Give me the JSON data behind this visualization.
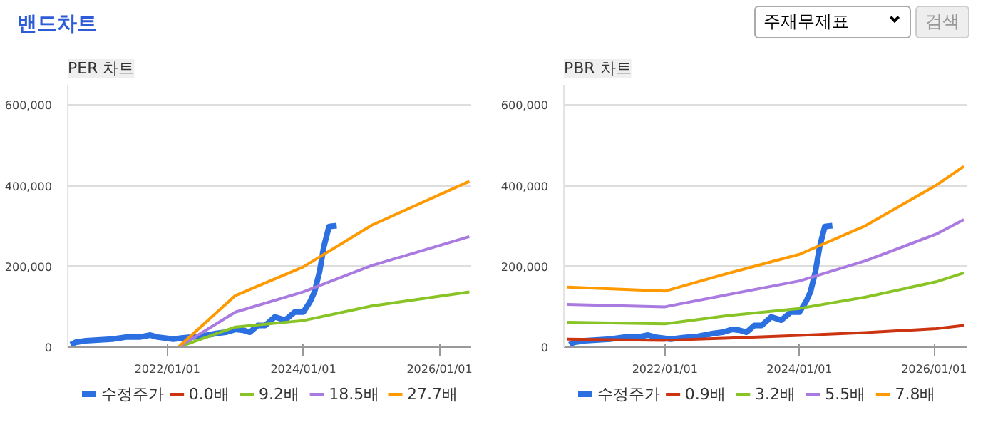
{
  "chart_data": [
    {
      "type": "line",
      "title": "PER 차트",
      "annotations": [
        "밴드차트",
        "주재무제표",
        "검색"
      ],
      "xlim": [
        "2020-07-15",
        "2026-06-20"
      ],
      "ylim": [
        0,
        650000
      ],
      "xticks": [
        {
          "value": "2022-01-01",
          "label": "2022/01/01"
        },
        {
          "value": "2024-01-01",
          "label": "2024/01/01"
        },
        {
          "value": "2026-01-01",
          "label": "2026/01/01"
        }
      ],
      "yticks": [
        0,
        {
          "value": 200000,
          "label": "200,000"
        },
        {
          "value": 400000,
          "label": "400,000"
        },
        {
          "value": 600000,
          "label": "600,000"
        }
      ],
      "grid": "y",
      "legend": "bottom",
      "series": [
        {
          "name": "수정주가",
          "color": "#2b6fe0",
          "x": [
            "2020-08-01",
            "2020-08-25",
            "2020-10-20",
            "2021-03-10",
            "2021-05-25",
            "2021-08-05",
            "2021-10-01",
            "2021-11-10",
            "2022-02-01",
            "2022-04-15",
            "2022-07-01",
            "2022-09-20",
            "2022-11-10",
            "2023-01-01",
            "2023-02-10",
            "2023-03-20",
            "2023-05-01",
            "2023-06-10",
            "2023-08-01",
            "2023-09-25",
            "2023-11-15",
            "2024-01-01",
            "2024-02-05",
            "2024-03-01",
            "2024-03-28",
            "2024-04-20",
            "2024-05-18",
            "2024-06-28"
          ],
          "values": [
            6000,
            12000,
            16000,
            20000,
            25000,
            25000,
            30000,
            25000,
            20000,
            24000,
            27000,
            34000,
            37000,
            44000,
            42000,
            37000,
            54000,
            54000,
            75000,
            67000,
            87000,
            87000,
            112000,
            137000,
            187000,
            249000,
            299000,
            301000
          ]
        },
        {
          "name": "0.0배",
          "color": "#cc3311",
          "x": [
            "2020-08-01",
            "2022-03-01",
            "2023-01-01",
            "2024-01-01",
            "2025-01-01",
            "2026-06-10"
          ],
          "values": [
            0,
            0,
            0,
            0,
            0,
            0
          ]
        },
        {
          "name": "9.2배",
          "color": "#88c425",
          "x": [
            "2020-08-01",
            "2022-03-01",
            "2023-01-01",
            "2024-01-01",
            "2025-01-01",
            "2026-06-10"
          ],
          "values": [
            0,
            0,
            50000,
            66000,
            102000,
            137000
          ]
        },
        {
          "name": "18.5배",
          "color": "#a97ae0",
          "x": [
            "2020-08-01",
            "2022-03-01",
            "2023-01-01",
            "2024-01-01",
            "2025-01-01",
            "2026-06-10"
          ],
          "values": [
            0,
            0,
            87000,
            137000,
            202000,
            274000
          ]
        },
        {
          "name": "27.7배",
          "color": "#ff9900",
          "x": [
            "2020-08-01",
            "2022-03-01",
            "2023-01-01",
            "2024-01-01",
            "2025-01-01",
            "2026-06-10"
          ],
          "values": [
            0,
            0,
            128000,
            199000,
            302000,
            411000
          ]
        }
      ]
    },
    {
      "type": "line",
      "title": "PBR 차트",
      "xlim": [
        "2020-07-01",
        "2026-07-01"
      ],
      "ylim": [
        0,
        650000
      ],
      "xticks": [
        {
          "value": "2022-01-01",
          "label": "2022/01/01"
        },
        {
          "value": "2024-01-01",
          "label": "2024/01/01"
        },
        {
          "value": "2026-01-01",
          "label": "2026/01/01"
        }
      ],
      "yticks": [
        0,
        {
          "value": 200000,
          "label": "200,000"
        },
        {
          "value": 400000,
          "label": "400,000"
        },
        {
          "value": 600000,
          "label": "600,000"
        }
      ],
      "grid": "y",
      "legend": "bottom",
      "series": [
        {
          "name": "수정주가",
          "color": "#2b6fe0",
          "x": [
            "2020-08-01",
            "2020-08-25",
            "2020-10-20",
            "2021-03-10",
            "2021-05-25",
            "2021-08-05",
            "2021-10-01",
            "2021-11-10",
            "2022-02-01",
            "2022-04-15",
            "2022-07-01",
            "2022-09-20",
            "2022-11-10",
            "2023-01-01",
            "2023-02-10",
            "2023-03-20",
            "2023-05-01",
            "2023-06-10",
            "2023-08-01",
            "2023-09-25",
            "2023-11-15",
            "2024-01-01",
            "2024-02-05",
            "2024-03-01",
            "2024-03-28",
            "2024-04-20",
            "2024-05-18",
            "2024-06-28"
          ],
          "values": [
            6000,
            12000,
            16000,
            20000,
            25000,
            25000,
            30000,
            25000,
            20000,
            24000,
            27000,
            34000,
            37000,
            44000,
            42000,
            37000,
            54000,
            54000,
            75000,
            67000,
            87000,
            87000,
            112000,
            137000,
            187000,
            249000,
            299000,
            301000
          ]
        },
        {
          "name": "0.9배",
          "color": "#cc3311",
          "x": [
            "2020-07-20",
            "2022-01-01",
            "2022-11-15",
            "2024-01-01",
            "2024-12-25",
            "2026-01-12",
            "2026-06-12"
          ],
          "values": [
            20000,
            17000,
            22000,
            29000,
            36000,
            46000,
            54000
          ]
        },
        {
          "name": "3.2배",
          "color": "#88c425",
          "x": [
            "2020-07-20",
            "2022-01-01",
            "2022-11-15",
            "2024-01-01",
            "2024-12-25",
            "2026-01-12",
            "2026-06-12"
          ],
          "values": [
            62000,
            58000,
            77000,
            96000,
            124000,
            162000,
            184000
          ]
        },
        {
          "name": "5.5배",
          "color": "#a97ae0",
          "x": [
            "2020-07-20",
            "2022-01-01",
            "2022-11-15",
            "2024-01-01",
            "2024-12-25",
            "2026-01-12",
            "2026-06-12"
          ],
          "values": [
            106000,
            100000,
            128000,
            164000,
            214000,
            280000,
            316000
          ]
        },
        {
          "name": "7.8배",
          "color": "#ff9900",
          "x": [
            "2020-07-20",
            "2022-01-01",
            "2022-11-15",
            "2024-01-01",
            "2024-12-25",
            "2026-01-12",
            "2026-06-12"
          ],
          "values": [
            149000,
            139000,
            180000,
            230000,
            301000,
            401000,
            448000
          ]
        }
      ]
    }
  ]
}
